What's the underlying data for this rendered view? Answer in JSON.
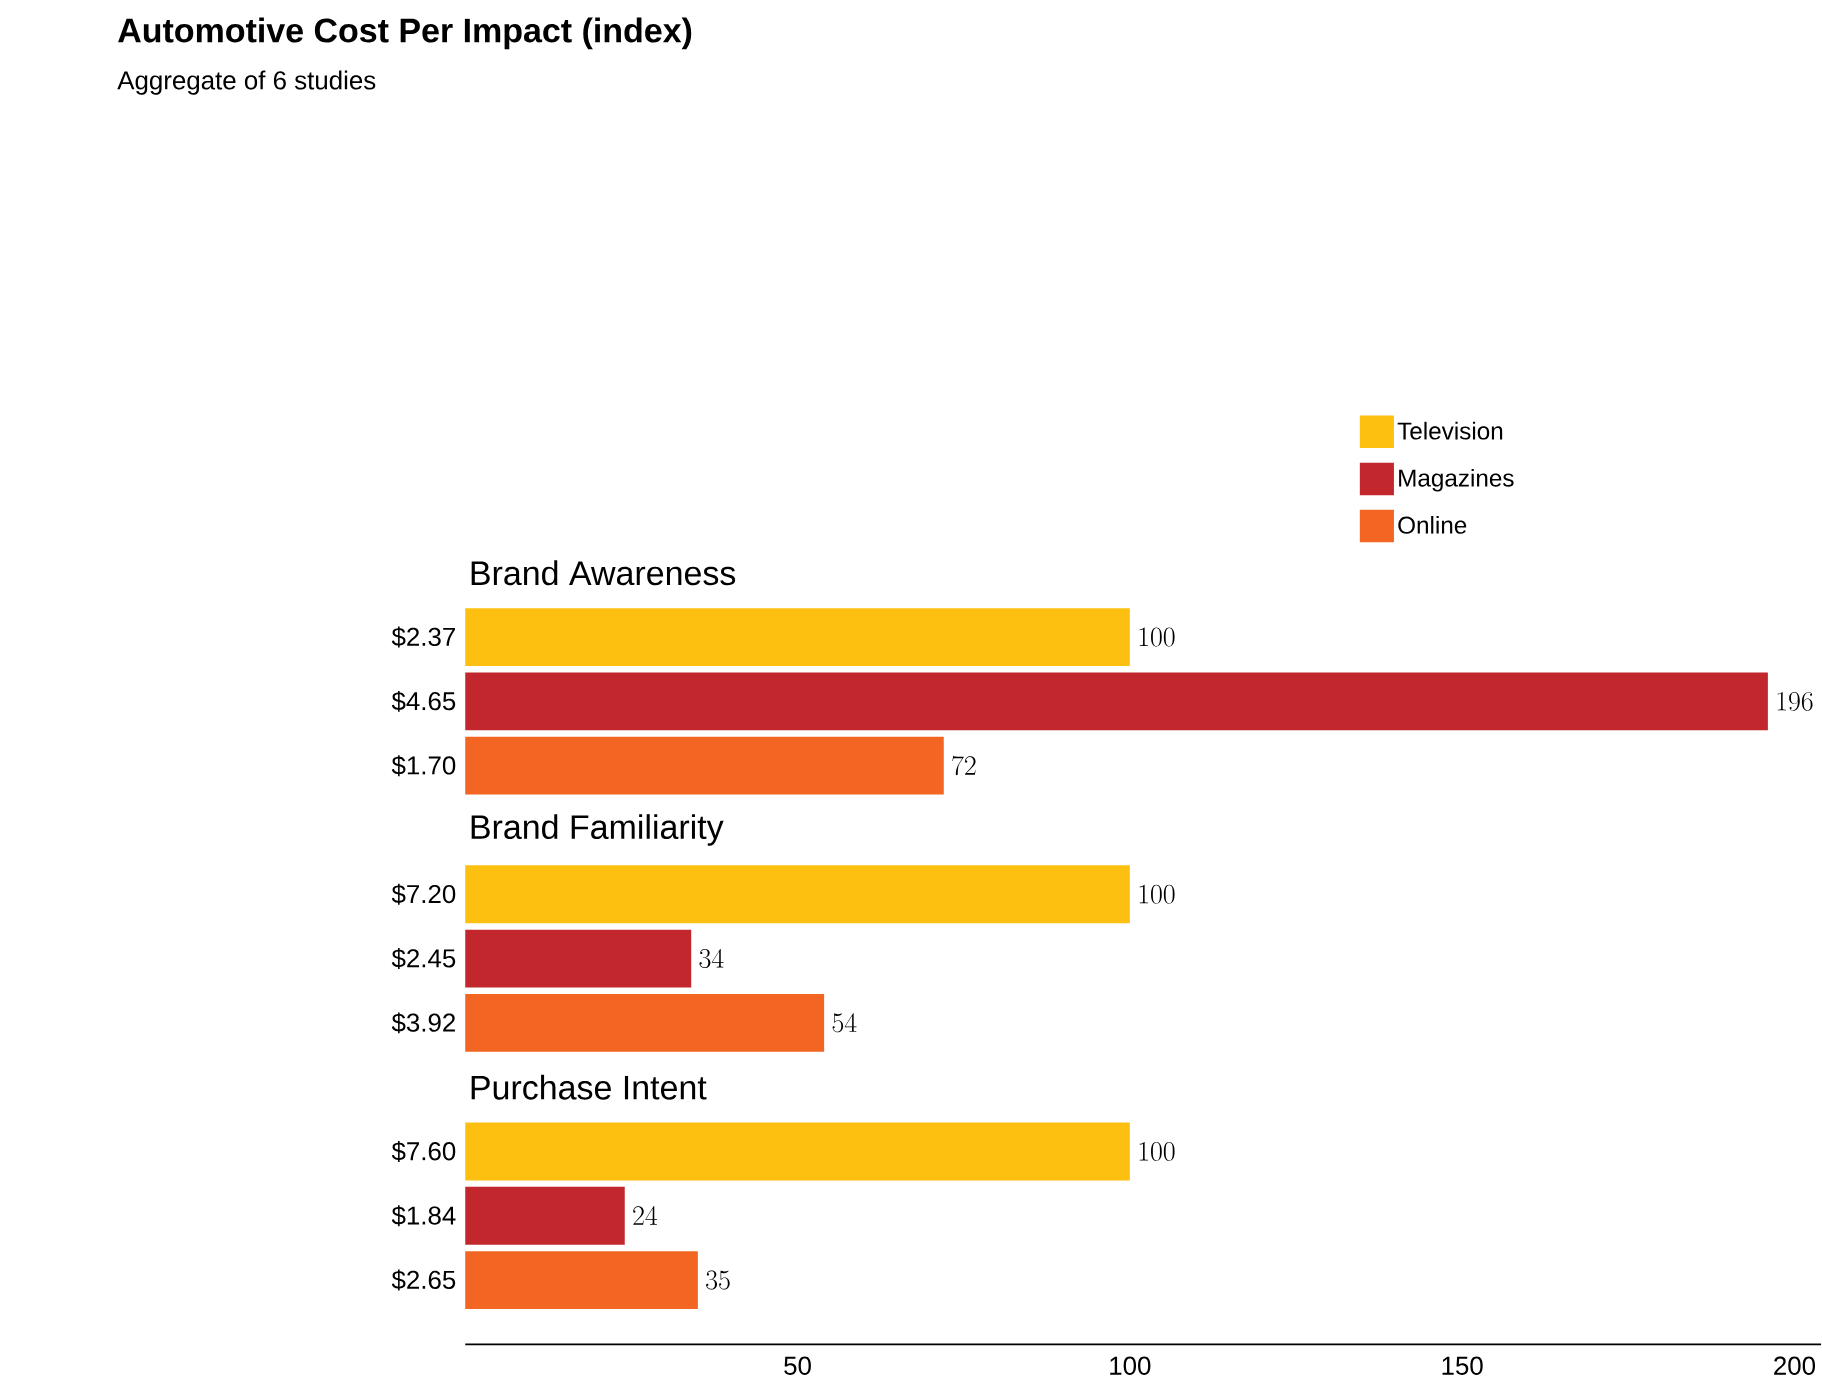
{
  "chart_data": {
    "type": "bar",
    "orientation": "horizontal",
    "title": "Automotive Cost Per Impact (index)",
    "subtitle": "Aggregate of 6 studies",
    "categories": [
      "$2.37",
      "$4.65",
      "$1.70",
      "$7.20",
      "$2.45",
      "$3.92",
      "$7.60",
      "$1.84",
      "$2.65"
    ],
    "annotations": [
      "Brand Awareness",
      "Brand Familiarity",
      "Purchase Intent"
    ],
    "series": [
      {
        "name": "Television",
        "color": "#fdc010",
        "values": [
          100,
          null,
          null,
          100,
          null,
          null,
          100,
          null,
          null
        ]
      },
      {
        "name": "Magazines",
        "color": "#c1272d",
        "values": [
          null,
          196,
          null,
          null,
          34,
          null,
          null,
          24,
          null
        ]
      },
      {
        "name": "Online",
        "color": "#f26522",
        "values": [
          null,
          null,
          72,
          null,
          null,
          54,
          null,
          null,
          35
        ]
      }
    ],
    "xlim": [
      0,
      204
    ],
    "xticks": [
      50,
      100,
      150,
      200
    ],
    "data_labels": true,
    "legend": "top right"
  }
}
